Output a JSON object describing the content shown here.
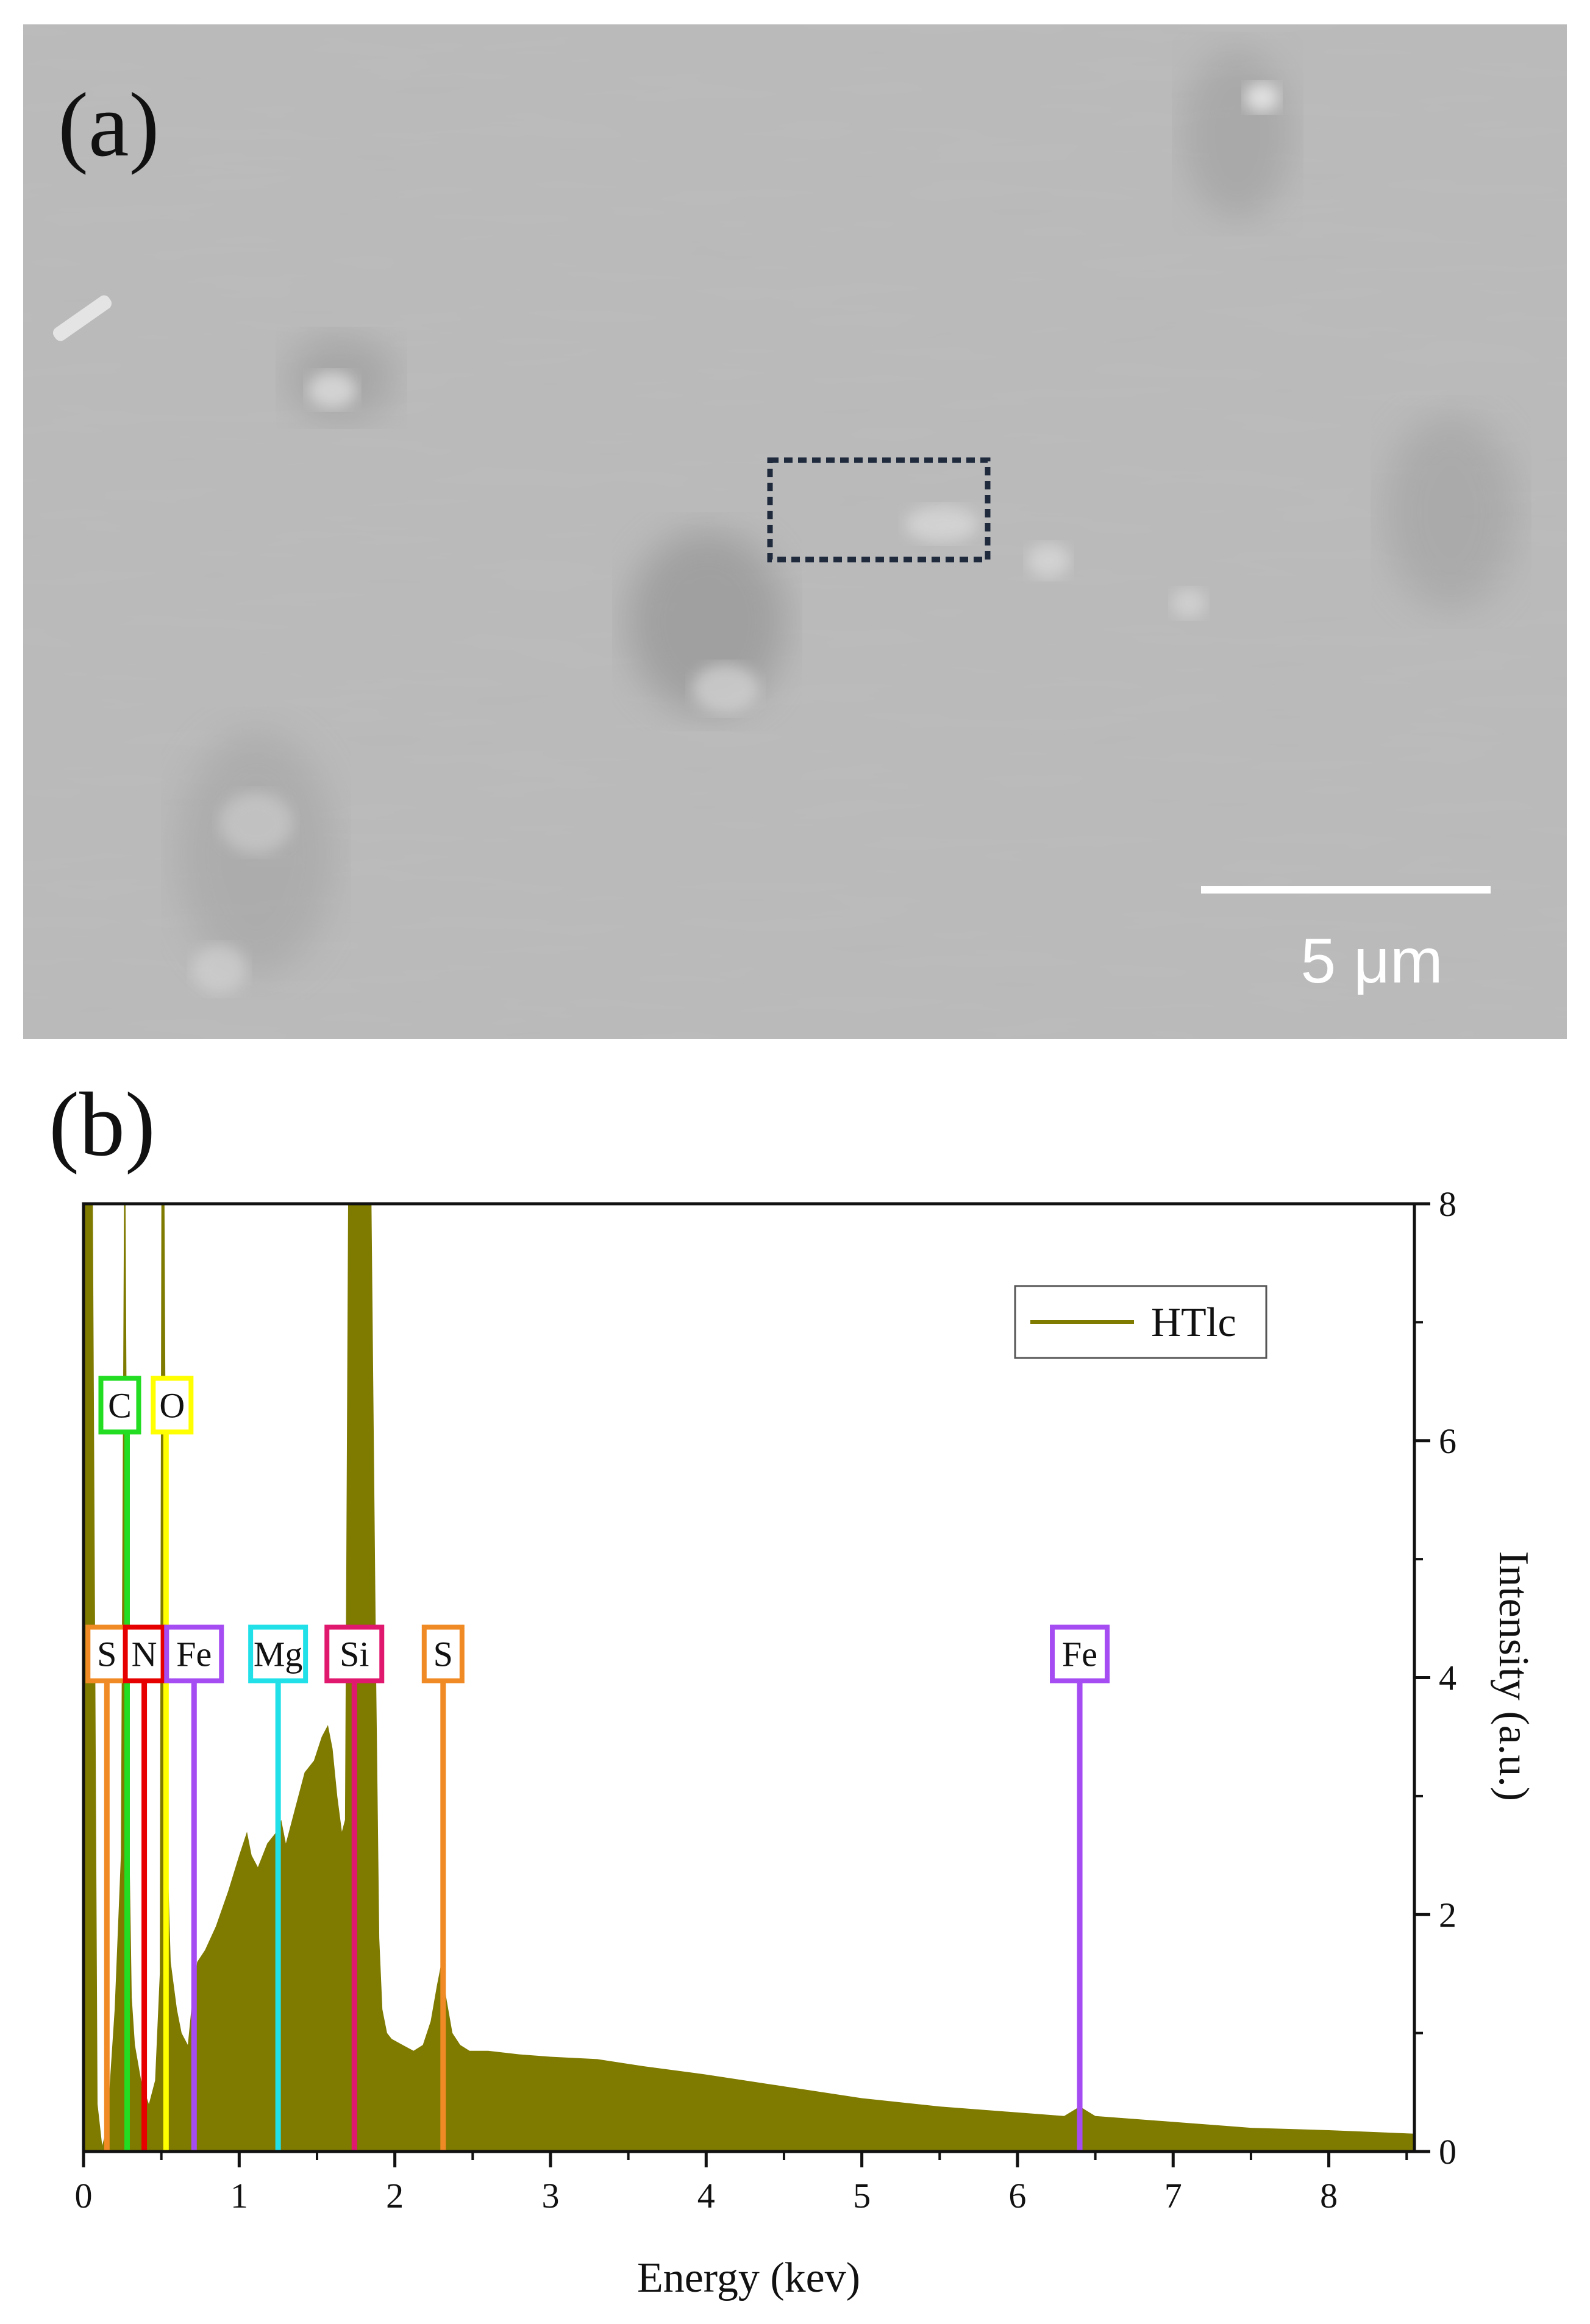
{
  "panel_a": {
    "label": "(a)",
    "scale_bar_label": "5 μm"
  },
  "panel_b": {
    "label": "(b)"
  },
  "chart_data": {
    "type": "area",
    "xlabel": "Energy (kev)",
    "ylabel": "Intensity (a.u.)",
    "xlim": [
      0,
      8.55
    ],
    "ylim": [
      0,
      8
    ],
    "x_ticks": [
      0,
      1,
      2,
      3,
      4,
      5,
      6,
      7,
      8
    ],
    "y_ticks": [
      0,
      2,
      4,
      6,
      8
    ],
    "y_axis_side": "right",
    "grid": false,
    "legend_position": "top-right",
    "series": [
      {
        "name": "HTlc",
        "color": "#7f7a00",
        "x": [
          0.0,
          0.02,
          0.06,
          0.09,
          0.12,
          0.15,
          0.2,
          0.24,
          0.26,
          0.27,
          0.29,
          0.31,
          0.33,
          0.37,
          0.42,
          0.46,
          0.49,
          0.5,
          0.52,
          0.54,
          0.56,
          0.6,
          0.63,
          0.67,
          0.7,
          0.73,
          0.78,
          0.85,
          0.93,
          1.0,
          1.05,
          1.08,
          1.12,
          1.18,
          1.24,
          1.27,
          1.3,
          1.36,
          1.42,
          1.48,
          1.53,
          1.57,
          1.6,
          1.63,
          1.66,
          1.68,
          1.7,
          1.72,
          1.85,
          1.88,
          1.9,
          1.92,
          1.95,
          1.98,
          2.05,
          2.12,
          2.18,
          2.23,
          2.27,
          2.3,
          2.33,
          2.37,
          2.42,
          2.48,
          2.6,
          2.8,
          3.0,
          3.3,
          3.6,
          4.0,
          4.5,
          5.0,
          5.5,
          6.0,
          6.3,
          6.4,
          6.5,
          7.0,
          7.5,
          8.0,
          8.55
        ],
        "values": [
          8,
          8,
          8,
          0.4,
          0.05,
          0.2,
          1.2,
          2.5,
          8,
          8,
          3.0,
          1.3,
          0.9,
          0.6,
          0.4,
          0.6,
          1.5,
          8,
          8,
          2.5,
          1.6,
          1.2,
          1.0,
          0.9,
          1.3,
          1.6,
          1.7,
          1.9,
          2.2,
          2.5,
          2.7,
          2.5,
          2.4,
          2.6,
          2.7,
          2.8,
          2.6,
          2.9,
          3.2,
          3.3,
          3.5,
          3.6,
          3.4,
          3.0,
          2.7,
          2.8,
          8,
          8,
          8,
          4.0,
          1.8,
          1.2,
          1.0,
          0.95,
          0.9,
          0.85,
          0.9,
          1.1,
          1.4,
          1.6,
          1.3,
          1.0,
          0.9,
          0.85,
          0.85,
          0.82,
          0.8,
          0.78,
          0.72,
          0.65,
          0.55,
          0.45,
          0.38,
          0.33,
          0.3,
          0.38,
          0.3,
          0.25,
          0.2,
          0.18,
          0.15
        ]
      }
    ],
    "element_markers": [
      {
        "label": "C",
        "x": 0.28,
        "y": 6.3,
        "color": "#22dd22"
      },
      {
        "label": "O",
        "x": 0.53,
        "y": 6.3,
        "color": "#ffff00"
      },
      {
        "label": "S",
        "x": 0.15,
        "y": 4.2,
        "color": "#f08a24"
      },
      {
        "label": "N",
        "x": 0.39,
        "y": 4.2,
        "color": "#e60000"
      },
      {
        "label": "Fe",
        "x": 0.71,
        "y": 4.2,
        "color": "#a54cf2"
      },
      {
        "label": "Mg",
        "x": 1.25,
        "y": 4.2,
        "color": "#22e0e8"
      },
      {
        "label": "Si",
        "x": 1.74,
        "y": 4.2,
        "color": "#e0186e"
      },
      {
        "label": "S",
        "x": 2.31,
        "y": 4.2,
        "color": "#f08a24"
      },
      {
        "label": "Fe",
        "x": 6.4,
        "y": 4.2,
        "color": "#a54cf2"
      }
    ]
  }
}
